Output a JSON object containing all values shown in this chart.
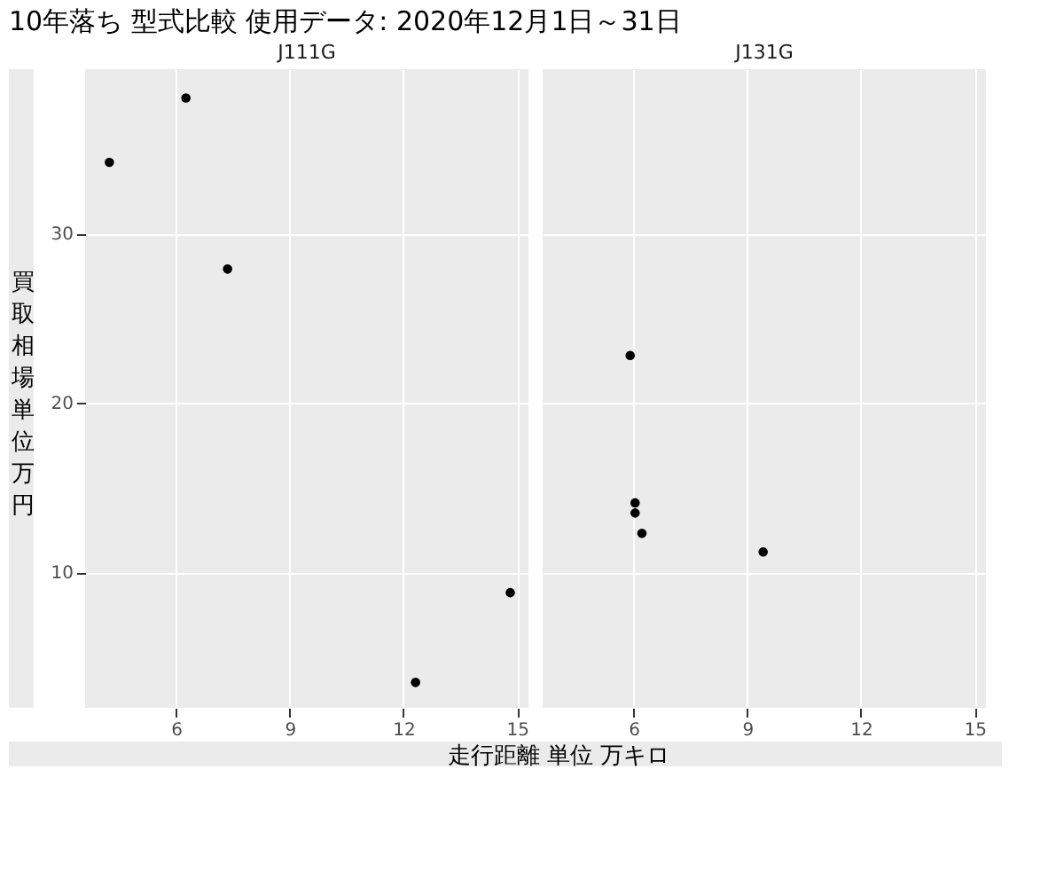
{
  "chart_data": [
    {
      "type": "scatter",
      "title": "J111G",
      "x": [
        4.24,
        6.26,
        7.36,
        14.82,
        12.32
      ],
      "values": [
        34.2,
        38.0,
        27.9,
        8.8,
        3.5
      ],
      "color": "#000000",
      "xlim": [
        3.6,
        15.3
      ],
      "xticks": [
        6,
        9,
        12,
        15
      ],
      "ylim": [
        2.0,
        39.7
      ],
      "yticks": [
        10,
        20,
        30
      ],
      "grid": true,
      "ylabel": "買取相場単位万円",
      "xlabel": "走行距離 単位 万キロ",
      "annotations": [
        "10年落ち 型式比較 使用データ: 2020年12月1日～31日"
      ]
    },
    {
      "type": "scatter",
      "title": "J131G",
      "x": [
        5.91,
        6.04,
        6.04,
        6.22,
        9.42
      ],
      "values": [
        22.8,
        14.1,
        13.5,
        12.3,
        11.2
      ],
      "color": "#000000",
      "xlim": [
        3.6,
        15.3
      ],
      "xticks": [
        6,
        9,
        12,
        15
      ],
      "ylim": [
        2.0,
        39.7
      ],
      "yticks": [
        10,
        20,
        30
      ],
      "grid": true,
      "tick_labels": "x"
    }
  ]
}
